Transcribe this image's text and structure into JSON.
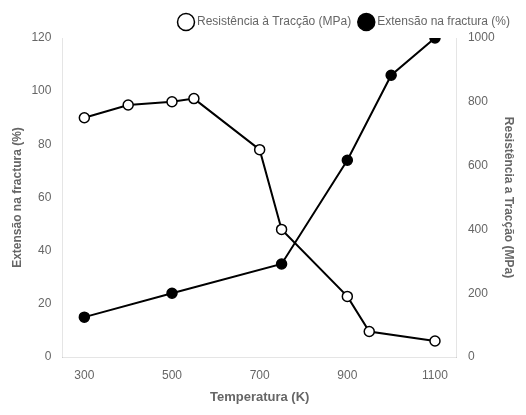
{
  "chart_data": {
    "type": "line",
    "xlabel": "Temperatura (K)",
    "ylabel": "Extensão na fractura (%)",
    "y2label": "Resistência a Tracção (MPa)",
    "series": [
      {
        "name": "Resistência à Tracção (MPa)",
        "axis": "y2",
        "color": "black",
        "marker": "open_circle",
        "x": [
          300,
          400,
          500,
          550,
          700,
          750,
          900,
          950,
          1100
        ],
        "values": [
          750,
          790,
          800,
          810,
          650,
          400,
          190,
          80,
          50
        ]
      },
      {
        "name": "Extensão na fractura (%)",
        "axis": "y",
        "color": "black",
        "marker": "filled_circle",
        "x": [
          300,
          500,
          750,
          900,
          1000,
          1100
        ],
        "values": [
          15,
          24,
          35,
          74,
          106,
          120
        ]
      }
    ],
    "xlim": [
      250,
      1150
    ],
    "xticks": [
      300,
      500,
      700,
      900,
      1100
    ],
    "ylim": [
      0,
      120
    ],
    "yticks": [
      0,
      20,
      40,
      60,
      80,
      100,
      120
    ],
    "y2lim": [
      0,
      1000
    ],
    "y2ticks": [
      0,
      200,
      400,
      600,
      800,
      1000
    ],
    "grid": false,
    "legend": "upper right"
  }
}
